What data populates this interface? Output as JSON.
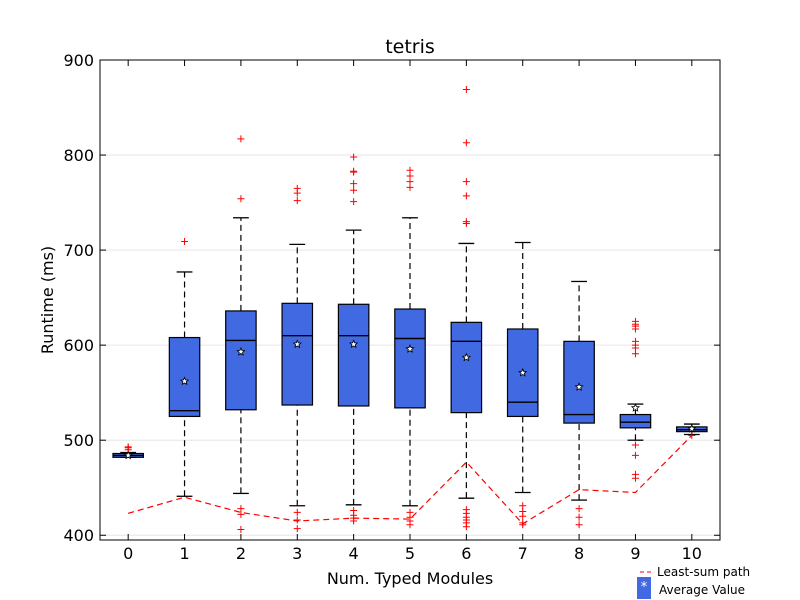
{
  "chart_data": {
    "type": "box",
    "title": "tetris",
    "xlabel": "Num. Typed Modules",
    "ylabel": "Runtime (ms)",
    "ylim": [
      395,
      900
    ],
    "yticks": [
      400,
      500,
      600,
      700,
      800,
      900
    ],
    "categories": [
      "0",
      "1",
      "2",
      "3",
      "4",
      "5",
      "6",
      "7",
      "8",
      "9",
      "10"
    ],
    "grid": "horizontal",
    "colors": {
      "box_fill": "#4169e1",
      "outlier": "#ff0000",
      "path": "#ff0000",
      "median": "#000000"
    },
    "boxes": [
      {
        "x": "0",
        "whislo": 482,
        "q1": 482,
        "med": 484,
        "q3": 486,
        "whishi": 487,
        "mean": 484,
        "fliers": [
          490,
          492,
          493
        ]
      },
      {
        "x": "1",
        "whislo": 441,
        "q1": 525,
        "med": 531,
        "q3": 608,
        "whishi": 677,
        "mean": 562,
        "fliers": [
          709
        ]
      },
      {
        "x": "2",
        "whislo": 444,
        "q1": 532,
        "med": 605,
        "q3": 636,
        "whishi": 734,
        "mean": 593,
        "fliers": [
          754,
          817,
          428,
          422,
          406
        ]
      },
      {
        "x": "3",
        "whislo": 431,
        "q1": 537,
        "med": 610,
        "q3": 644,
        "whishi": 706,
        "mean": 601,
        "fliers": [
          752,
          760,
          765,
          424,
          416,
          407
        ]
      },
      {
        "x": "4",
        "whislo": 432,
        "q1": 536,
        "med": 610,
        "q3": 643,
        "whishi": 721,
        "mean": 601,
        "fliers": [
          751,
          763,
          770,
          782,
          783,
          798,
          426,
          421,
          418,
          415
        ]
      },
      {
        "x": "5",
        "whislo": 431,
        "q1": 534,
        "med": 607,
        "q3": 638,
        "whishi": 734,
        "mean": 596,
        "fliers": [
          766,
          772,
          778,
          784,
          424,
          419,
          415,
          411
        ]
      },
      {
        "x": "6",
        "whislo": 439,
        "q1": 529,
        "med": 604,
        "q3": 624,
        "whishi": 707,
        "mean": 587,
        "fliers": [
          728,
          730,
          757,
          772,
          813,
          869,
          427,
          423,
          419,
          416,
          413,
          409
        ]
      },
      {
        "x": "7",
        "whislo": 445,
        "q1": 525,
        "med": 540,
        "q3": 617,
        "whishi": 708,
        "mean": 571,
        "fliers": [
          431,
          425,
          420,
          413,
          411
        ]
      },
      {
        "x": "8",
        "whislo": 437,
        "q1": 518,
        "med": 527,
        "q3": 604,
        "whishi": 667,
        "mean": 556,
        "fliers": [
          428,
          419,
          411
        ]
      },
      {
        "x": "9",
        "whislo": 500,
        "q1": 513,
        "med": 519,
        "q3": 527,
        "whishi": 538,
        "mean": 534,
        "fliers": [
          591,
          597,
          600,
          604,
          617,
          620,
          622,
          625,
          495,
          484,
          464,
          460
        ]
      },
      {
        "x": "10",
        "whislo": 506,
        "q1": 509,
        "med": 511,
        "q3": 514,
        "whishi": 517,
        "mean": 512,
        "fliers": [
          505
        ]
      }
    ],
    "least_sum_path": {
      "name": "Least-sum path",
      "x": [
        "0",
        "1",
        "2",
        "3",
        "4",
        "5",
        "6",
        "7",
        "8",
        "9",
        "10"
      ],
      "y": [
        423,
        440,
        424,
        415,
        418,
        417,
        477,
        412,
        448,
        445,
        505
      ]
    },
    "legend": {
      "placement": "bottom-right",
      "entries": [
        "Least-sum path",
        "Average Value"
      ]
    }
  }
}
